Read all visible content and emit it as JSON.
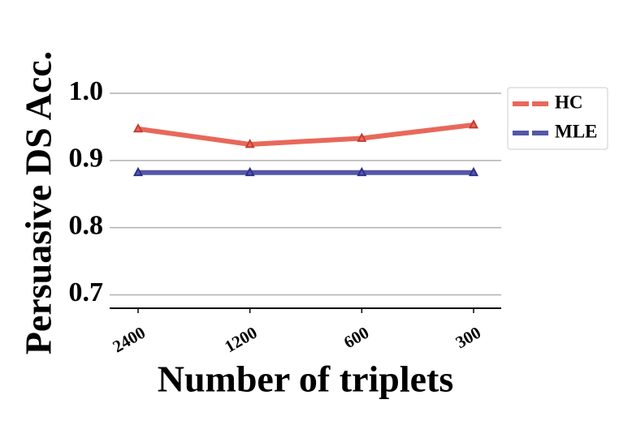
{
  "chart_data": {
    "type": "line",
    "x_label": "Number of triplets",
    "y_label": "Persuasive DS Acc.",
    "categories": [
      "2400",
      "1200",
      "600",
      "300"
    ],
    "series": [
      {
        "name": "HC",
        "color": "#e8685b",
        "values": [
          0.947,
          0.924,
          0.933,
          0.953
        ]
      },
      {
        "name": "MLE",
        "color": "#5457a8",
        "values": [
          0.882,
          0.882,
          0.882,
          0.882
        ]
      }
    ],
    "ylim": [
      0.68,
      1.0
    ],
    "yticks": [
      {
        "value": 1.0,
        "label": "1.0"
      },
      0.9,
      0.8,
      0.7
    ],
    "grid": true,
    "legend": "outside-right"
  }
}
